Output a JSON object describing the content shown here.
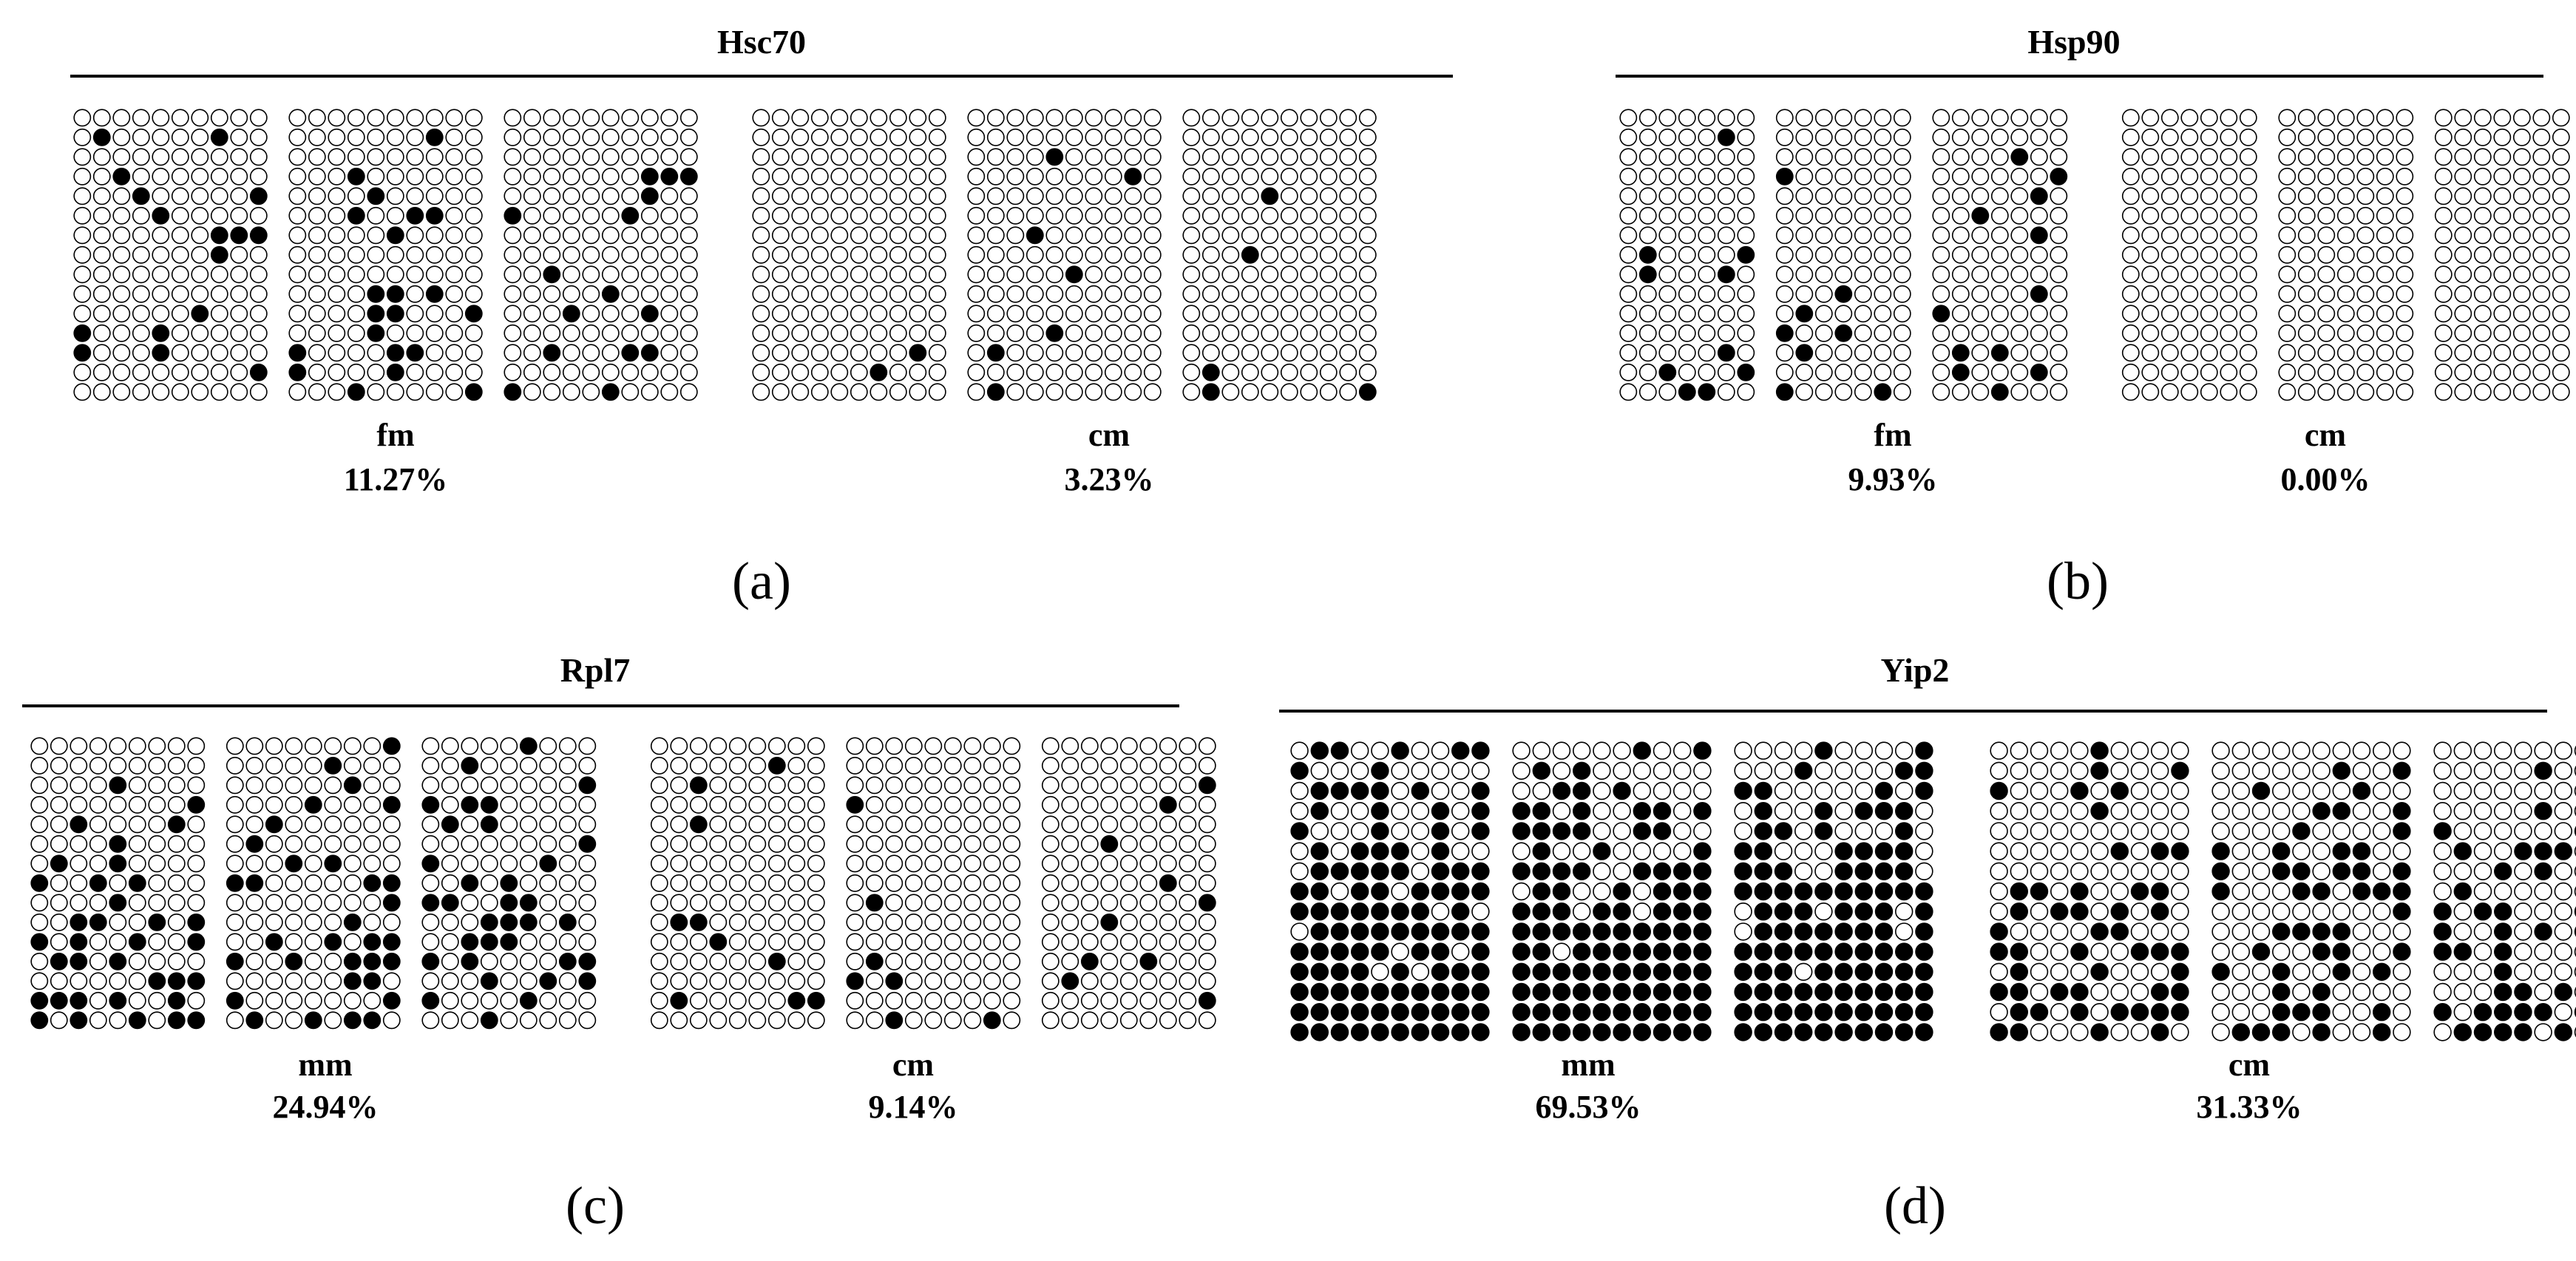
{
  "panels": [
    {
      "id": "a",
      "panel_label": "(a)",
      "title": "Hsc70",
      "groups": [
        {
          "label": "fm",
          "percent": "11.27%",
          "n_blocks": 3,
          "methylated_pct": 11.27
        },
        {
          "label": "cm",
          "percent": "3.23%",
          "n_blocks": 3,
          "methylated_pct": 3.23
        }
      ]
    },
    {
      "id": "b",
      "panel_label": "(b)",
      "title": "Hsp90",
      "groups": [
        {
          "label": "fm",
          "percent": "9.93%",
          "n_blocks": 3,
          "methylated_pct": 9.93
        },
        {
          "label": "cm",
          "percent": "0.00%",
          "n_blocks": 3,
          "methylated_pct": 0.0
        }
      ]
    },
    {
      "id": "c",
      "panel_label": "(c)",
      "title": "Rpl7",
      "groups": [
        {
          "label": "mm",
          "percent": "24.94%",
          "n_blocks": 3,
          "methylated_pct": 24.94
        },
        {
          "label": "cm",
          "percent": "9.14%",
          "n_blocks": 3,
          "methylated_pct": 9.14
        }
      ]
    },
    {
      "id": "d",
      "panel_label": "(d)",
      "title": "Yip2",
      "groups": [
        {
          "label": "mm",
          "percent": "69.53%",
          "n_blocks": 3,
          "methylated_pct": 69.53
        },
        {
          "label": "cm",
          "percent": "31.33%",
          "n_blocks": 3,
          "methylated_pct": 31.33
        }
      ]
    }
  ],
  "legend": {
    "methylated": "filled circle",
    "unmethylated": "open circle"
  },
  "colors": {
    "methylated_fill": "#000000",
    "unmethylated_fill": "#ffffff",
    "stroke": "#000000"
  }
}
